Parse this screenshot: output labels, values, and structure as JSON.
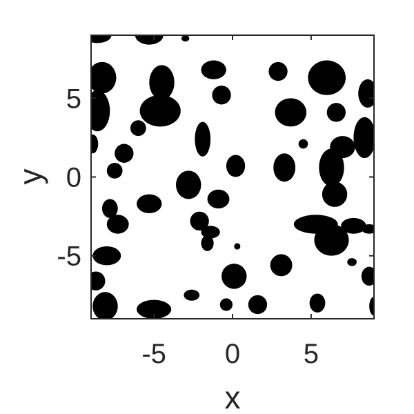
{
  "chart_data": {
    "type": "scatter",
    "title": "",
    "xlabel": "x",
    "ylabel": "y",
    "xlim": [
      -9,
      9
    ],
    "ylim": [
      -9,
      9
    ],
    "xticks": [
      -5,
      0,
      5
    ],
    "yticks": [
      -5,
      0,
      5
    ],
    "xtick_labels": [
      "-5",
      "0",
      "5"
    ],
    "ytick_labels": [
      "-5",
      "0",
      "5"
    ],
    "grid": false,
    "legend": "none",
    "fill_color": "#000000",
    "axis_color": "#262626",
    "background": "#ffffff",
    "blobs": [
      {
        "x": -8.6,
        "y": 9.0,
        "rx": 0.9,
        "ry": 0.5
      },
      {
        "x": -5.3,
        "y": 9.0,
        "rx": 0.9,
        "ry": 0.6
      },
      {
        "x": -3.0,
        "y": 8.8,
        "rx": 0.25,
        "ry": 0.2
      },
      {
        "x": -8.3,
        "y": 6.3,
        "rx": 0.9,
        "ry": 1.0
      },
      {
        "x": -8.6,
        "y": 4.2,
        "rx": 0.8,
        "ry": 1.3
      },
      {
        "x": -8.9,
        "y": 2.1,
        "rx": 0.35,
        "ry": 0.6
      },
      {
        "x": -4.5,
        "y": 6.0,
        "rx": 0.8,
        "ry": 1.1
      },
      {
        "x": -4.6,
        "y": 4.2,
        "rx": 1.3,
        "ry": 1.0
      },
      {
        "x": -6.0,
        "y": 3.1,
        "rx": 0.5,
        "ry": 0.5
      },
      {
        "x": -1.2,
        "y": 6.8,
        "rx": 0.8,
        "ry": 0.6
      },
      {
        "x": -0.7,
        "y": 5.2,
        "rx": 0.6,
        "ry": 0.6
      },
      {
        "x": 2.9,
        "y": 6.7,
        "rx": 0.6,
        "ry": 0.6
      },
      {
        "x": 6.0,
        "y": 6.3,
        "rx": 1.2,
        "ry": 1.1
      },
      {
        "x": 6.6,
        "y": 4.1,
        "rx": 0.6,
        "ry": 0.6
      },
      {
        "x": 8.6,
        "y": 5.3,
        "rx": 0.6,
        "ry": 0.9
      },
      {
        "x": 3.7,
        "y": 4.1,
        "rx": 1.0,
        "ry": 0.9
      },
      {
        "x": 4.5,
        "y": 2.1,
        "rx": 0.3,
        "ry": 0.3
      },
      {
        "x": 7.0,
        "y": 1.9,
        "rx": 0.8,
        "ry": 0.7
      },
      {
        "x": 8.4,
        "y": 2.5,
        "rx": 0.7,
        "ry": 1.3
      },
      {
        "x": -1.9,
        "y": 2.4,
        "rx": 0.5,
        "ry": 1.1
      },
      {
        "x": -6.9,
        "y": 1.5,
        "rx": 0.6,
        "ry": 0.6
      },
      {
        "x": -7.5,
        "y": 0.4,
        "rx": 0.5,
        "ry": 0.5
      },
      {
        "x": 0.2,
        "y": 0.7,
        "rx": 0.6,
        "ry": 0.7
      },
      {
        "x": 3.3,
        "y": 0.6,
        "rx": 0.7,
        "ry": 0.9
      },
      {
        "x": 6.3,
        "y": 0.6,
        "rx": 0.8,
        "ry": 1.2
      },
      {
        "x": 6.5,
        "y": -1.1,
        "rx": 0.8,
        "ry": 0.8
      },
      {
        "x": -2.8,
        "y": -0.5,
        "rx": 0.8,
        "ry": 0.9
      },
      {
        "x": -0.9,
        "y": -1.4,
        "rx": 0.7,
        "ry": 0.6
      },
      {
        "x": -5.3,
        "y": -1.7,
        "rx": 0.8,
        "ry": 0.6
      },
      {
        "x": -7.8,
        "y": -2.0,
        "rx": 0.5,
        "ry": 0.6
      },
      {
        "x": -7.3,
        "y": -3.0,
        "rx": 0.7,
        "ry": 0.6
      },
      {
        "x": -2.1,
        "y": -2.8,
        "rx": 0.6,
        "ry": 0.6
      },
      {
        "x": -1.4,
        "y": -3.5,
        "rx": 0.6,
        "ry": 0.4
      },
      {
        "x": -1.6,
        "y": -4.2,
        "rx": 0.4,
        "ry": 0.5
      },
      {
        "x": 0.3,
        "y": -4.4,
        "rx": 0.2,
        "ry": 0.2
      },
      {
        "x": 5.3,
        "y": -3.0,
        "rx": 1.4,
        "ry": 0.6
      },
      {
        "x": 6.3,
        "y": -4.0,
        "rx": 1.1,
        "ry": 1.0
      },
      {
        "x": 7.7,
        "y": -3.1,
        "rx": 0.8,
        "ry": 0.5
      },
      {
        "x": 8.7,
        "y": -3.3,
        "rx": 0.5,
        "ry": 0.3
      },
      {
        "x": -8.0,
        "y": -5.0,
        "rx": 0.9,
        "ry": 0.6
      },
      {
        "x": 3.1,
        "y": -5.6,
        "rx": 0.7,
        "ry": 0.7
      },
      {
        "x": 7.6,
        "y": -5.4,
        "rx": 0.3,
        "ry": 0.25
      },
      {
        "x": -8.7,
        "y": -6.6,
        "rx": 0.6,
        "ry": 0.6
      },
      {
        "x": 8.7,
        "y": -6.3,
        "rx": 0.5,
        "ry": 0.6
      },
      {
        "x": 0.1,
        "y": -6.3,
        "rx": 0.8,
        "ry": 0.8
      },
      {
        "x": -2.6,
        "y": -7.5,
        "rx": 0.5,
        "ry": 0.35
      },
      {
        "x": -8.1,
        "y": -8.2,
        "rx": 0.8,
        "ry": 0.9
      },
      {
        "x": -5.0,
        "y": -8.4,
        "rx": 1.1,
        "ry": 0.6
      },
      {
        "x": -0.4,
        "y": -8.1,
        "rx": 0.4,
        "ry": 0.4
      },
      {
        "x": 1.6,
        "y": -8.1,
        "rx": 0.6,
        "ry": 0.6
      },
      {
        "x": 5.4,
        "y": -8.0,
        "rx": 0.5,
        "ry": 0.6
      },
      {
        "x": 9.0,
        "y": -8.2,
        "rx": 0.3,
        "ry": 0.6
      }
    ]
  }
}
